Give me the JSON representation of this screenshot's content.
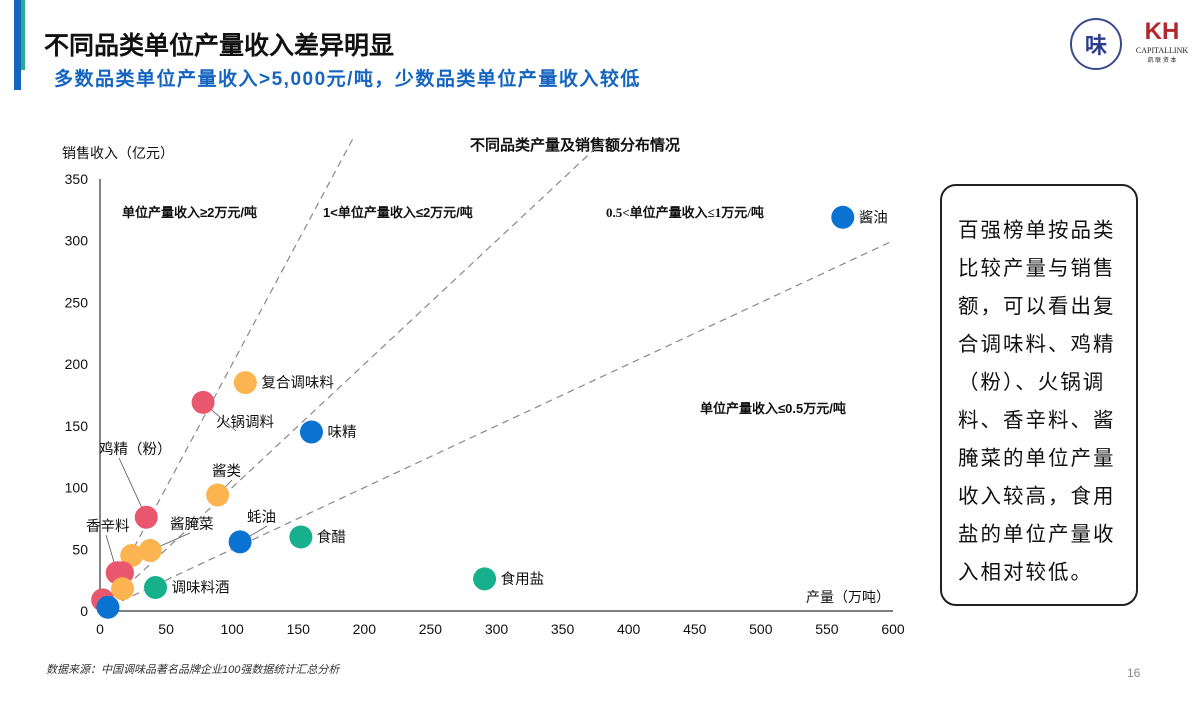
{
  "header": {
    "title": "不同品类单位产量收入差异明显",
    "subtitle": "多数品类单位产量收入>5,000元/吨，少数品类单位产量收入较低"
  },
  "logos": {
    "left": "味",
    "right_mark": "KH",
    "right_en": "CAPITALLINK",
    "right_cn": "凯 联 资 本"
  },
  "colors": {
    "accent": "#1565c0",
    "red": "#e8576e",
    "orange": "#fbb450",
    "blue": "#0a73d2",
    "green": "#17b08c"
  },
  "chart_data": {
    "type": "scatter",
    "title": "不同品类产量及销售额分布情况",
    "xlabel": "产量（万吨）",
    "ylabel": "销售收入（亿元）",
    "xlim": [
      0,
      600
    ],
    "ylim": [
      0,
      350
    ],
    "xticks": [
      "0",
      "50",
      "100",
      "150",
      "200",
      "250",
      "300",
      "350",
      "400",
      "450",
      "500",
      "550",
      "600"
    ],
    "yticks": [
      "0",
      "50",
      "100",
      "150",
      "200",
      "250",
      "300",
      "350"
    ],
    "grid": false,
    "reference_lines": [
      {
        "slope": 2,
        "label": "单位产量收入≥2万元/吨"
      },
      {
        "slope": 1,
        "label": "1<单位产量收入≤2万元/吨"
      },
      {
        "slope": 0.5,
        "label": "0.5<单位产量收入≤1万元/吨"
      },
      {
        "slope": 0,
        "label": "单位产量收入≤0.5万元/吨"
      }
    ],
    "points": [
      {
        "x": 562,
        "y": 319,
        "color": "blue",
        "label": "酱油"
      },
      {
        "x": 110,
        "y": 185,
        "color": "orange",
        "label": "复合调味料"
      },
      {
        "x": 78,
        "y": 169,
        "color": "red",
        "label": "火锅调料"
      },
      {
        "x": 160,
        "y": 145,
        "color": "blue",
        "label": "味精"
      },
      {
        "x": 89,
        "y": 94,
        "color": "orange",
        "label": "酱类"
      },
      {
        "x": 35,
        "y": 76,
        "color": "red",
        "label": "鸡精（粉）"
      },
      {
        "x": 106,
        "y": 56,
        "color": "blue",
        "label": "蚝油"
      },
      {
        "x": 152,
        "y": 60,
        "color": "green",
        "label": "食醋"
      },
      {
        "x": 291,
        "y": 26,
        "color": "green",
        "label": "食用盐"
      },
      {
        "x": 38,
        "y": 49,
        "color": "orange",
        "label": "酱腌菜"
      },
      {
        "x": 24,
        "y": 45,
        "color": "orange",
        "label": ""
      },
      {
        "x": 13,
        "y": 31,
        "color": "red",
        "label": "香辛料"
      },
      {
        "x": 17,
        "y": 31,
        "color": "red",
        "label": ""
      },
      {
        "x": 17,
        "y": 18,
        "color": "orange",
        "label": ""
      },
      {
        "x": 42,
        "y": 19,
        "color": "green",
        "label": "调味料酒"
      },
      {
        "x": 2,
        "y": 9,
        "color": "red",
        "label": ""
      },
      {
        "x": 6,
        "y": 3,
        "color": "blue",
        "label": ""
      }
    ]
  },
  "note": "百强榜单按品类比较产量与销售额，可以看出复合调味料、鸡精（粉）、火锅调料、香辛料、酱腌菜的单位产量收入较高，食用盐的单位产量收入相对较低。",
  "source": "数据来源：中国调味品著名品牌企业100强数据统计汇总分析",
  "page_number": "16"
}
